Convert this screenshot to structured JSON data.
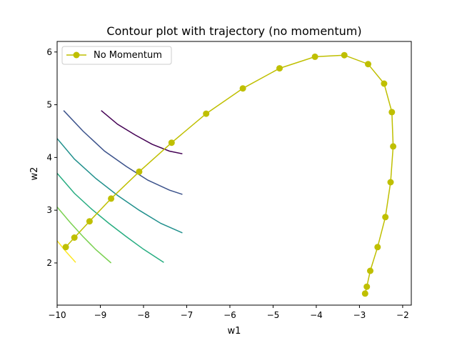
{
  "chart_data": {
    "type": "line",
    "title": "Contour plot with trajectory (no momentum)",
    "xlabel": "w1",
    "ylabel": "w2",
    "xlim": [
      -10,
      -1.8
    ],
    "ylim": [
      1.2,
      6.2
    ],
    "xticks": [
      -10,
      -9,
      -8,
      -7,
      -6,
      -5,
      -4,
      -3,
      -2
    ],
    "xtick_labels": [
      "−10",
      "−9",
      "−8",
      "−7",
      "−6",
      "−5",
      "−4",
      "−3",
      "−2"
    ],
    "yticks": [
      2,
      3,
      4,
      5,
      6
    ],
    "ytick_labels": [
      "2",
      "3",
      "4",
      "5",
      "6"
    ],
    "grid": false,
    "legend": {
      "position": "top-left",
      "entries": [
        "No Momentum"
      ]
    },
    "series": [
      {
        "name": "No Momentum",
        "color": "#bfbf00",
        "marker": "circle",
        "x": [
          -9.8,
          -9.6,
          -9.25,
          -8.75,
          -8.1,
          -7.35,
          -6.55,
          -5.7,
          -4.85,
          -4.03,
          -3.35,
          -2.8,
          -2.43,
          -2.25,
          -2.22,
          -2.28,
          -2.4,
          -2.58,
          -2.75,
          -2.83,
          -2.87
        ],
        "y": [
          2.3,
          2.48,
          2.79,
          3.22,
          3.73,
          4.28,
          4.83,
          5.31,
          5.69,
          5.91,
          5.94,
          5.77,
          5.4,
          4.86,
          4.21,
          3.53,
          2.87,
          2.3,
          1.85,
          1.55,
          1.42
        ]
      }
    ],
    "contours": [
      {
        "color": "#440154",
        "x": [
          -8.98,
          -8.6,
          -8.2,
          -7.8,
          -7.4,
          -7.1
        ],
        "y": [
          4.89,
          4.63,
          4.43,
          4.25,
          4.12,
          4.07
        ]
      },
      {
        "color": "#3b528b",
        "x": [
          -9.85,
          -9.4,
          -8.9,
          -8.4,
          -7.9,
          -7.4,
          -7.1
        ],
        "y": [
          4.89,
          4.5,
          4.12,
          3.83,
          3.57,
          3.38,
          3.3
        ]
      },
      {
        "color": "#21908d",
        "x": [
          -10.0,
          -9.6,
          -9.1,
          -8.6,
          -8.1,
          -7.6,
          -7.1
        ],
        "y": [
          4.36,
          3.97,
          3.6,
          3.28,
          3.0,
          2.75,
          2.57
        ]
      },
      {
        "color": "#27ad81",
        "x": [
          -10.0,
          -9.6,
          -9.2,
          -8.8,
          -8.4,
          -8.0,
          -7.53
        ],
        "y": [
          3.7,
          3.32,
          3.02,
          2.75,
          2.5,
          2.26,
          2.01
        ]
      },
      {
        "color": "#7ad151",
        "x": [
          -10.0,
          -9.7,
          -9.4,
          -9.1,
          -8.75
        ],
        "y": [
          3.06,
          2.77,
          2.5,
          2.25,
          2.0
        ]
      },
      {
        "color": "#fde725",
        "x": [
          -10.0,
          -9.8,
          -9.57
        ],
        "y": [
          2.42,
          2.22,
          2.01
        ]
      }
    ]
  }
}
